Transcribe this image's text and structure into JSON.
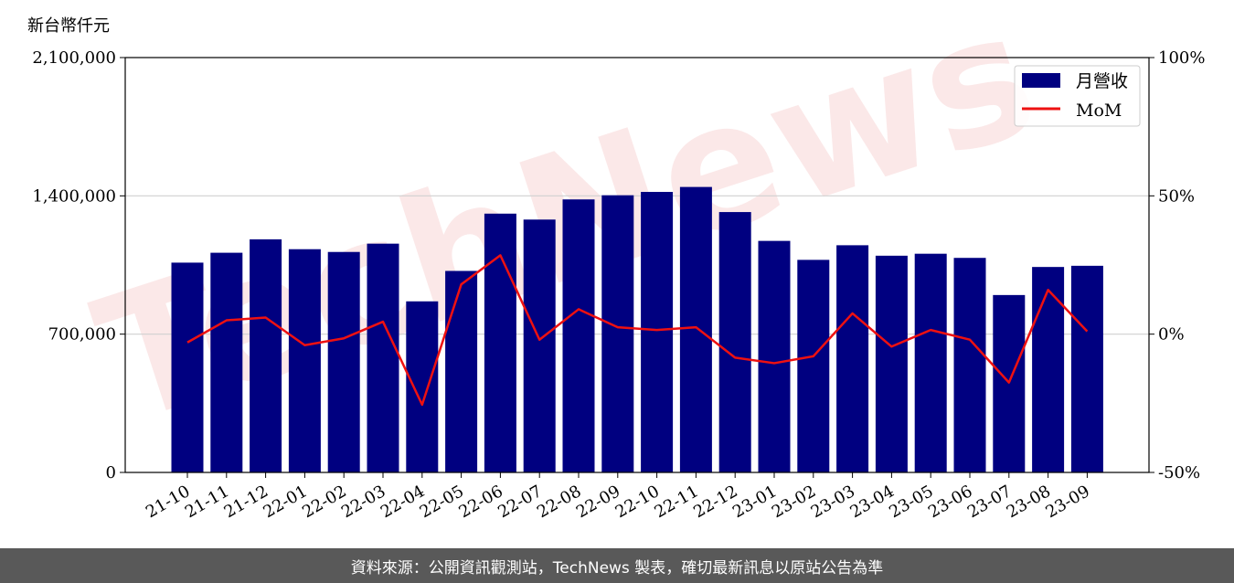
{
  "chart_data": {
    "type": "bar",
    "ylabel": "新台幣仟元",
    "categories": [
      "21-10",
      "21-11",
      "21-12",
      "22-01",
      "22-02",
      "22-03",
      "22-04",
      "22-05",
      "22-06",
      "22-07",
      "22-08",
      "22-09",
      "22-10",
      "22-11",
      "22-12",
      "23-01",
      "23-02",
      "23-03",
      "23-04",
      "23-05",
      "23-06",
      "23-07",
      "23-08",
      "23-09"
    ],
    "series": [
      {
        "name": "月營收",
        "type": "bar",
        "axis": "left",
        "color": "#000080",
        "values": [
          1062000,
          1112000,
          1180000,
          1130000,
          1116000,
          1158000,
          866000,
          1020000,
          1310000,
          1280000,
          1382000,
          1403000,
          1420000,
          1445000,
          1318000,
          1172000,
          1076000,
          1150000,
          1097000,
          1107000,
          1086000,
          898000,
          1040000,
          1046000
        ]
      },
      {
        "name": "MoM",
        "type": "line",
        "axis": "right",
        "color": "#ee1111",
        "values": [
          -3,
          5,
          6,
          -4,
          -1.5,
          4.5,
          -25.5,
          18,
          28.5,
          -2,
          9,
          2.5,
          1.5,
          2.5,
          -8.5,
          -10.5,
          -8,
          7.5,
          -4.5,
          1.5,
          -2,
          -17.5,
          16,
          1
        ]
      }
    ],
    "ylim_left": [
      0,
      2100000
    ],
    "ylim_right": [
      -50,
      100
    ],
    "yticks_left": [
      "0",
      "700,000",
      "1,400,000",
      "2,100,000"
    ],
    "yticks_left_values": [
      0,
      700000,
      1400000,
      2100000
    ],
    "yticks_right": [
      "-50%",
      "0%",
      "50%",
      "100%"
    ],
    "yticks_right_values": [
      -50,
      0,
      50,
      100
    ],
    "grid": "horizontal",
    "legend": "top-right",
    "watermark": "TechNews"
  },
  "footer": "資料來源：公開資訊觀測站，TechNews 製表，確切最新訊息以原站公告為準"
}
